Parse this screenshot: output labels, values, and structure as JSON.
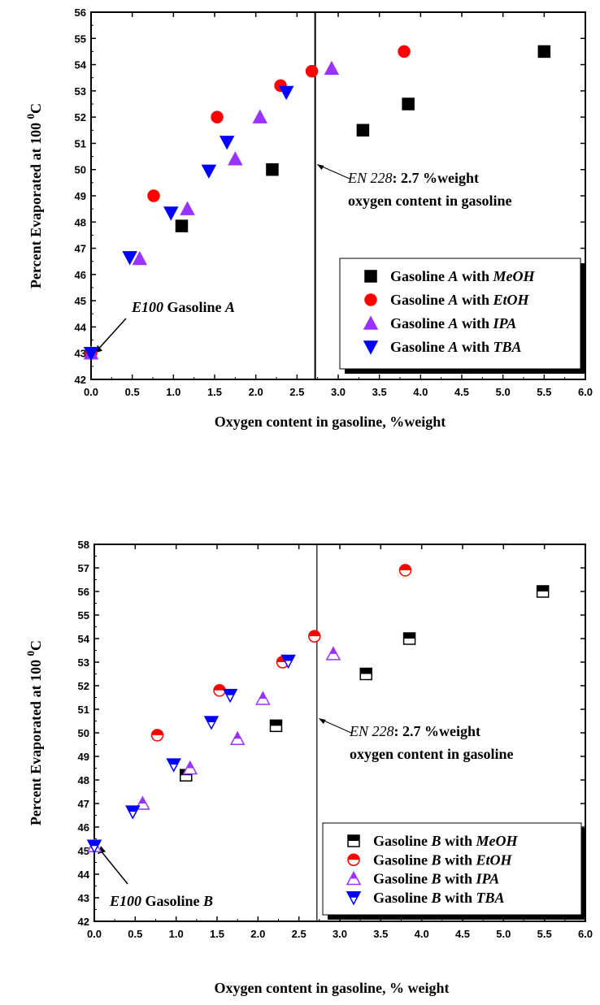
{
  "chart_data": [
    {
      "type": "scatter",
      "xlabel": "Oxygen content in gasoline, %weight",
      "ylabel": {
        "main": "Percent Evaporated at 100 ",
        "sup": "0",
        "sub": "C"
      },
      "xlim": [
        0,
        6
      ],
      "ylim": [
        42,
        56
      ],
      "xticks": [
        "0.0",
        "0.5",
        "1.0",
        "1.5",
        "2.0",
        "2.5",
        "3.0",
        "3.5",
        "4.0",
        "4.5",
        "5.0",
        "5.5",
        "6.0"
      ],
      "yticks": [
        "42",
        "43",
        "44",
        "45",
        "46",
        "47",
        "48",
        "49",
        "50",
        "51",
        "52",
        "53",
        "54",
        "55",
        "56"
      ],
      "vline": 2.72,
      "annotation_en": {
        "italic": "EN 228",
        "rest": ": 2.7 %weight",
        "line2": "oxygen content in gasoline"
      },
      "annotation_e100": {
        "italic": "E100",
        "rest": " Gasoline ",
        "letter": "A"
      },
      "legend_position": "bottom-right",
      "series": [
        {
          "legend": {
            "pre": "Gasoline ",
            "letter": "A",
            "mid": " with ",
            "fuel": "MeOH"
          },
          "marker": "square",
          "color": "#000000",
          "x": [
            1.1,
            2.2,
            3.3,
            3.85,
            5.5
          ],
          "y": [
            47.85,
            50.0,
            51.5,
            52.5,
            54.5
          ]
        },
        {
          "legend": {
            "pre": "Gasoline ",
            "letter": "A",
            "mid": " with ",
            "fuel": "EtOH"
          },
          "marker": "circle",
          "color": "#ff0000",
          "x": [
            0.0,
            0.76,
            1.53,
            2.3,
            2.68,
            3.8
          ],
          "y": [
            43.0,
            49.0,
            52.0,
            53.2,
            53.75,
            54.5
          ]
        },
        {
          "legend": {
            "pre": "Gasoline ",
            "letter": "A",
            "mid": " with ",
            "fuel": "IPA"
          },
          "marker": "triangle-up",
          "color": "#9933ff",
          "x": [
            0.0,
            0.59,
            1.17,
            1.75,
            2.05,
            2.92
          ],
          "y": [
            43.0,
            46.6,
            48.5,
            50.4,
            52.0,
            53.85
          ]
        },
        {
          "legend": {
            "pre": "Gasoline ",
            "letter": "A",
            "mid": " with ",
            "fuel": "TBA"
          },
          "marker": "triangle-down",
          "color": "#0000ff",
          "x": [
            0.0,
            0.47,
            0.97,
            1.43,
            1.65,
            2.37
          ],
          "y": [
            43.0,
            46.65,
            48.35,
            49.95,
            51.05,
            52.95
          ]
        }
      ]
    },
    {
      "type": "scatter",
      "xlabel": "Oxygen content in gasoline, % weight",
      "ylabel": {
        "main": "Percent Evaporated at 100 ",
        "sup": "0",
        "sub": "C"
      },
      "xlim": [
        0,
        6
      ],
      "ylim": [
        42,
        58
      ],
      "xticks": [
        "0.0",
        "0.5",
        "1.0",
        "1.5",
        "2.0",
        "2.5",
        "3.0",
        "3.5",
        "4.0",
        "4.5",
        "5.0",
        "5.5",
        "6.0"
      ],
      "yticks": [
        "42",
        "43",
        "44",
        "45",
        "46",
        "47",
        "48",
        "49",
        "50",
        "51",
        "52",
        "53",
        "54",
        "55",
        "56",
        "57",
        "58"
      ],
      "vline": 2.72,
      "annotation_en": {
        "italic": "EN 228",
        "rest": ": 2.7 %weight",
        "line2": "oxygen content in gasoline"
      },
      "annotation_e100": {
        "italic": "E100",
        "rest": " Gasoline ",
        "letter": "B"
      },
      "legend_position": "bottom-right",
      "series": [
        {
          "legend": {
            "pre": "Gasoline ",
            "letter": "B",
            "mid": " with ",
            "fuel": "MeOH"
          },
          "marker": "square-half",
          "color": "#000000",
          "x": [
            1.12,
            2.22,
            3.32,
            3.85,
            5.48
          ],
          "y": [
            48.2,
            50.3,
            52.5,
            54.0,
            56.0
          ]
        },
        {
          "legend": {
            "pre": "Gasoline ",
            "letter": "B",
            "mid": " with ",
            "fuel": "EtOH"
          },
          "marker": "circle-half",
          "color": "#ff0000",
          "x": [
            0.77,
            1.53,
            2.3,
            2.69,
            3.8
          ],
          "y": [
            49.9,
            51.8,
            53.0,
            54.1,
            56.9
          ]
        },
        {
          "legend": {
            "pre": "Gasoline ",
            "letter": "B",
            "mid": " with ",
            "fuel": "IPA"
          },
          "marker": "triangle-up-half",
          "color": "#9933ff",
          "x": [
            0.0,
            0.59,
            1.17,
            1.75,
            2.06,
            2.92
          ],
          "y": [
            45.2,
            47.0,
            48.5,
            49.75,
            51.45,
            53.35
          ]
        },
        {
          "legend": {
            "pre": "Gasoline ",
            "letter": "B",
            "mid": " with ",
            "fuel": "TBA"
          },
          "marker": "triangle-down-half",
          "color": "#0000ff",
          "x": [
            0.0,
            0.47,
            0.97,
            1.43,
            1.66,
            2.37
          ],
          "y": [
            45.2,
            46.65,
            48.65,
            50.45,
            51.6,
            53.05
          ]
        }
      ]
    }
  ]
}
